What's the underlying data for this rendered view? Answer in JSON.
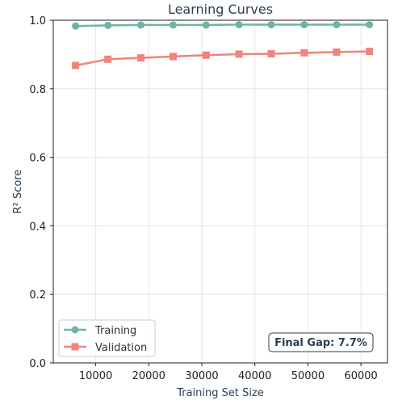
{
  "chart_data": {
    "type": "line",
    "title": "Learning Curves",
    "xlabel": "Training Set Size",
    "ylabel": "R² Score",
    "xlim": [
      2000,
      65000
    ],
    "ylim": [
      0.0,
      1.0
    ],
    "x_ticks": [
      10000,
      20000,
      30000,
      40000,
      50000,
      60000
    ],
    "y_ticks": [
      0.0,
      0.2,
      0.4,
      0.6,
      0.8,
      1.0
    ],
    "x_tick_labels": [
      "10000",
      "20000",
      "30000",
      "40000",
      "50000",
      "60000"
    ],
    "y_tick_labels": [
      "0.0",
      "0.2",
      "0.4",
      "0.6",
      "0.8",
      "1.0"
    ],
    "grid": true,
    "legend_position": "lower-left",
    "x": [
      6200,
      12300,
      18500,
      24600,
      30800,
      37000,
      43100,
      49300,
      55400,
      61600
    ],
    "series": [
      {
        "name": "Training",
        "color": "#6fb3a8",
        "marker": "circle",
        "values": [
          0.983,
          0.985,
          0.986,
          0.986,
          0.986,
          0.987,
          0.987,
          0.987,
          0.987,
          0.987
        ]
      },
      {
        "name": "Validation",
        "color": "#f0837b",
        "marker": "square",
        "values": [
          0.868,
          0.886,
          0.89,
          0.894,
          0.898,
          0.901,
          0.902,
          0.905,
          0.907,
          0.909
        ]
      }
    ],
    "annotation": {
      "text": "Final Gap: 7.7%"
    }
  }
}
